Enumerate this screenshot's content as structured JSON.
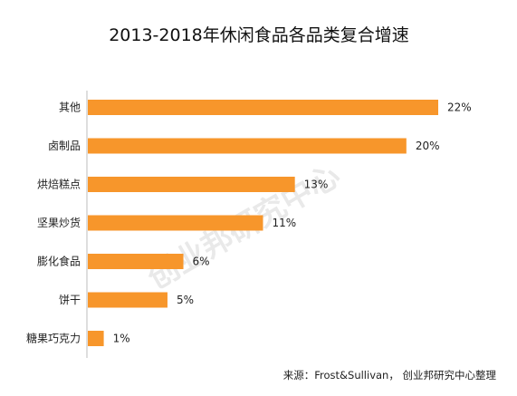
{
  "chart_data": {
    "type": "bar",
    "orientation": "horizontal",
    "title": "2013-2018年休闲食品各品类复合增速",
    "categories": [
      "其他",
      "卤制品",
      "烘焙糕点",
      "坚果炒货",
      "膨化食品",
      "饼干",
      "糖果巧克力"
    ],
    "values": [
      22,
      20,
      13,
      11,
      6,
      5,
      1
    ],
    "value_labels": [
      "22%",
      "20%",
      "13%",
      "11%",
      "6%",
      "5%",
      "1%"
    ],
    "xlim": [
      0,
      22
    ],
    "grid": false,
    "bar_color": "#F7962B",
    "source": "来源：Frost&Sullivan， 创业邦研究中心整理",
    "watermark": "创业邦研究中心"
  }
}
